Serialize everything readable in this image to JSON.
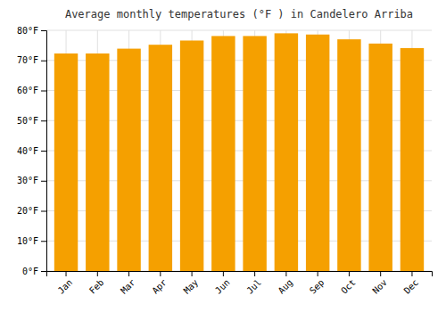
{
  "chart_data": {
    "type": "bar",
    "title": "Average monthly temperatures (°F ) in Candelero Arriba",
    "categories": [
      "Jan",
      "Feb",
      "Mar",
      "Apr",
      "May",
      "Jun",
      "Jul",
      "Aug",
      "Sep",
      "Oct",
      "Nov",
      "Dec"
    ],
    "values": [
      72.3,
      72.3,
      73.9,
      75.2,
      76.6,
      78.1,
      78.1,
      79.0,
      78.6,
      77.0,
      75.6,
      74.1
    ],
    "color": "#F5A000",
    "ylim": [
      0,
      80
    ],
    "yticks": [
      {
        "value": 0,
        "label": "0°F"
      },
      {
        "value": 10,
        "label": "10°F"
      },
      {
        "value": 20,
        "label": "20°F"
      },
      {
        "value": 30,
        "label": "30°F"
      },
      {
        "value": 40,
        "label": "40°F"
      },
      {
        "value": 50,
        "label": "50°F"
      },
      {
        "value": 60,
        "label": "60°F"
      },
      {
        "value": 70,
        "label": "70°F"
      },
      {
        "value": 80,
        "label": "80°F"
      }
    ],
    "grid": true
  }
}
